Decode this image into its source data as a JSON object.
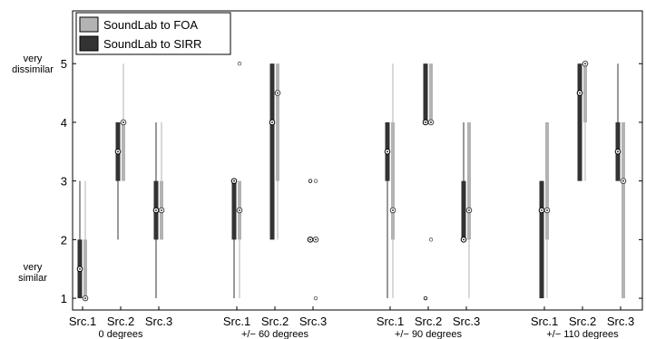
{
  "chart_data": {
    "type": "box",
    "title": "",
    "xlabel": "",
    "ylabel": "",
    "ylim": [
      0.8,
      5.9
    ],
    "yticks": [
      1,
      2,
      3,
      4,
      5
    ],
    "y_end_labels": {
      "top": [
        "very",
        "dissimilar"
      ],
      "bottom": [
        "very",
        "similar"
      ]
    },
    "legend": {
      "placement": "top-left",
      "entries": [
        {
          "label": "SoundLab to FOA",
          "color": "#b3b3b3"
        },
        {
          "label": "SoundLab to SIRR",
          "color": "#333333"
        }
      ]
    },
    "groups": [
      {
        "label": "0 degrees",
        "sources": [
          "Src.1",
          "Src.2",
          "Src.3"
        ]
      },
      {
        "label": "+/− 60 degrees",
        "sources": [
          "Src.1",
          "Src.2",
          "Src.3"
        ]
      },
      {
        "label": "+/− 90 degrees",
        "sources": [
          "Src.1",
          "Src.2",
          "Src.3"
        ]
      },
      {
        "label": "+/− 110 degrees",
        "sources": [
          "Src.1",
          "Src.2",
          "Src.3"
        ]
      }
    ],
    "series": [
      {
        "name": "SoundLab to SIRR",
        "color": "#333333",
        "boxes": [
          {
            "lo": 1,
            "q1": 1,
            "med": 1.5,
            "q3": 2,
            "hi": 3,
            "outliers": []
          },
          {
            "lo": 2,
            "q1": 3,
            "med": 3.5,
            "q3": 4,
            "hi": 4,
            "outliers": []
          },
          {
            "lo": 1,
            "q1": 2,
            "med": 2.5,
            "q3": 3,
            "hi": 4,
            "outliers": []
          },
          {
            "lo": 1,
            "q1": 2,
            "med": 3,
            "q3": 3,
            "hi": 3,
            "outliers": []
          },
          {
            "lo": 2,
            "q1": 2,
            "med": 4,
            "q3": 5,
            "hi": 5,
            "outliers": []
          },
          {
            "lo": 2,
            "q1": 2,
            "med": 2,
            "q3": 2,
            "hi": 2,
            "outliers": [
              3
            ]
          },
          {
            "lo": 1,
            "q1": 3,
            "med": 3.5,
            "q3": 4,
            "hi": 4,
            "outliers": []
          },
          {
            "lo": 4,
            "q1": 4,
            "med": 4,
            "q3": 5,
            "hi": 5,
            "outliers": [
              1
            ]
          },
          {
            "lo": 2,
            "q1": 2,
            "med": 2,
            "q3": 3,
            "hi": 4,
            "outliers": []
          },
          {
            "lo": 1,
            "q1": 1,
            "med": 2.5,
            "q3": 3,
            "hi": 3,
            "outliers": []
          },
          {
            "lo": 3,
            "q1": 3,
            "med": 4.5,
            "q3": 5,
            "hi": 5,
            "outliers": []
          },
          {
            "lo": 3,
            "q1": 3,
            "med": 3.5,
            "q3": 4,
            "hi": 5,
            "outliers": []
          }
        ]
      },
      {
        "name": "SoundLab to FOA",
        "color": "#b3b3b3",
        "boxes": [
          {
            "lo": 1,
            "q1": 1,
            "med": 1,
            "q3": 2,
            "hi": 3,
            "outliers": []
          },
          {
            "lo": 3,
            "q1": 3,
            "med": 4,
            "q3": 4,
            "hi": 5,
            "outliers": []
          },
          {
            "lo": 2,
            "q1": 2,
            "med": 2.5,
            "q3": 3,
            "hi": 4,
            "outliers": []
          },
          {
            "lo": 1,
            "q1": 2,
            "med": 2.5,
            "q3": 3,
            "hi": 3,
            "outliers": [
              5
            ]
          },
          {
            "lo": 2,
            "q1": 3,
            "med": 4.5,
            "q3": 5,
            "hi": 5,
            "outliers": []
          },
          {
            "lo": 2,
            "q1": 2,
            "med": 2,
            "q3": 2,
            "hi": 2,
            "outliers": [
              3,
              1
            ]
          },
          {
            "lo": 1,
            "q1": 2,
            "med": 2.5,
            "q3": 4,
            "hi": 5,
            "outliers": []
          },
          {
            "lo": 4,
            "q1": 4,
            "med": 4,
            "q3": 5,
            "hi": 5,
            "outliers": [
              2
            ]
          },
          {
            "lo": 1,
            "q1": 2,
            "med": 2.5,
            "q3": 4,
            "hi": 4,
            "outliers": []
          },
          {
            "lo": 1,
            "q1": 2,
            "med": 2.5,
            "q3": 4,
            "hi": 4,
            "outliers": []
          },
          {
            "lo": 3,
            "q1": 4,
            "med": 5,
            "q3": 5,
            "hi": 5,
            "outliers": []
          },
          {
            "lo": 1,
            "q1": 1,
            "med": 3,
            "q3": 4,
            "hi": 4,
            "outliers": []
          }
        ]
      }
    ]
  }
}
